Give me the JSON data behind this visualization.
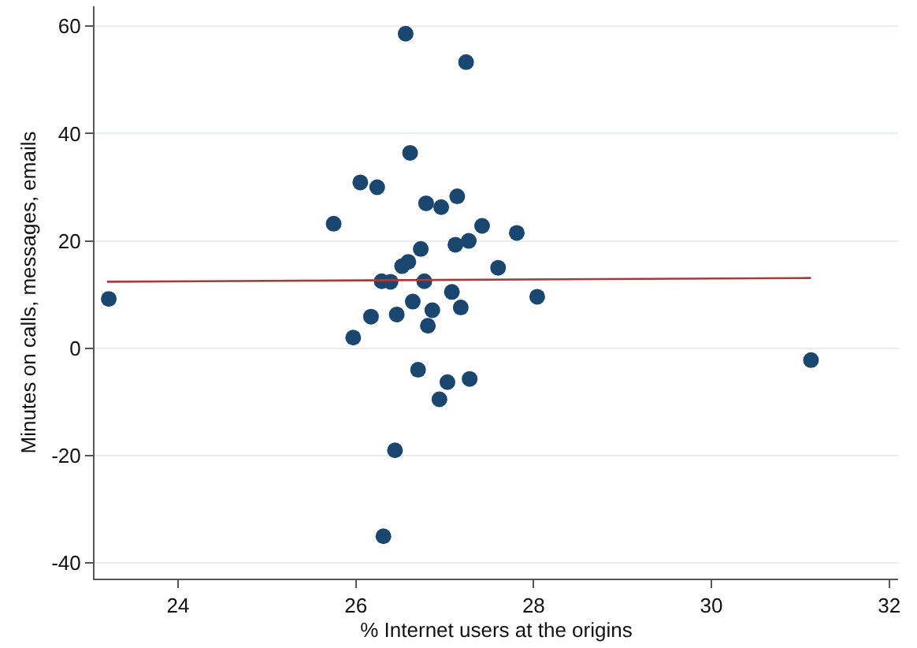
{
  "chart_data": {
    "type": "scatter",
    "xlabel": "% Internet users at the origins",
    "ylabel": "Minutes on calls, messages, emails",
    "xlim": [
      23.06,
      32.1
    ],
    "ylim": [
      -42.9,
      63.7
    ],
    "xticks": [
      24,
      26,
      28,
      30,
      32
    ],
    "yticks": [
      -40,
      -20,
      0,
      20,
      40,
      60
    ],
    "grid": "y",
    "marker": "circle",
    "series": [
      {
        "color": "#1a476f",
        "x": [
          26.56,
          27.24,
          26.61,
          26.05,
          26.24,
          25.75,
          26.79,
          26.96,
          27.14,
          27.42,
          27.81,
          26.73,
          27.12,
          27.27,
          26.52,
          26.59,
          27.6,
          26.29,
          26.39,
          26.77,
          28.04,
          26.64,
          27.08,
          26.86,
          27.18,
          26.17,
          26.46,
          26.81,
          25.97,
          26.7,
          27.28,
          27.03,
          26.94,
          26.44,
          26.31,
          23.22,
          31.12
        ],
        "values": [
          58.6,
          53.3,
          36.4,
          30.9,
          30.0,
          23.2,
          27.0,
          26.3,
          28.3,
          22.8,
          21.5,
          18.5,
          19.3,
          20.0,
          15.3,
          16.1,
          15.0,
          12.5,
          12.4,
          12.5,
          9.6,
          8.7,
          10.5,
          7.1,
          7.6,
          5.9,
          6.3,
          4.2,
          2.0,
          -4.0,
          -5.7,
          -6.3,
          -9.5,
          -19.0,
          -35.0,
          9.2,
          -2.2
        ]
      },
      {
        "type": "line",
        "color": "#a83a3a",
        "marker": "none",
        "line_style": "solid",
        "x": [
          23.2,
          31.12
        ],
        "values": [
          12.4,
          13.1
        ]
      }
    ]
  }
}
